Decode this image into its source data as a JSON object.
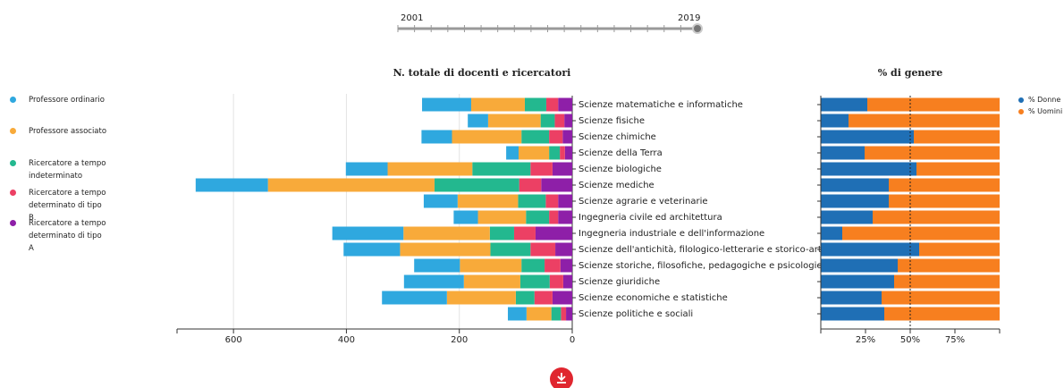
{
  "slider": {
    "start_label": "2001",
    "end_label": "2019",
    "min": 2001,
    "max": 2019,
    "value": 2019
  },
  "chart_data": [
    {
      "type": "stacked-bar-horizontal",
      "title": "N. totale di docenti e ricercatori",
      "categories": [
        "Scienze matematiche e informatiche",
        "Scienze fisiche",
        "Scienze chimiche",
        "Scienze della Terra",
        "Scienze biologiche",
        "Scienze mediche",
        "Scienze agrarie e veterinarie",
        "Ingegneria civile ed architettura",
        "Ingegneria industriale e dell'informazione",
        "Scienze dell'antichità, filologico-letterarie e storico-art...",
        "Scienze storiche, filosofiche, pedagogiche e psicologiche",
        "Scienze giuridiche",
        "Scienze economiche e statistiche",
        "Scienze politiche e sociali"
      ],
      "series": [
        {
          "name": "Professore ordinario",
          "color": "#2fa8df",
          "values": [
            87,
            36,
            54,
            22,
            74,
            128,
            60,
            43,
            126,
            100,
            81,
            106,
            115,
            33
          ]
        },
        {
          "name": "Professore associato",
          "color": "#f8aa3a",
          "values": [
            95,
            93,
            123,
            54,
            150,
            295,
            107,
            85,
            153,
            160,
            109,
            100,
            122,
            44
          ]
        },
        {
          "name": "Ricercatore a tempo indeterminato",
          "color": "#23b88f",
          "values": [
            38,
            25,
            49,
            19,
            103,
            150,
            49,
            41,
            43,
            71,
            41,
            52,
            33,
            17
          ]
        },
        {
          "name": "Ricercatore a tempo determinato di tipo B",
          "color": "#ec4064",
          "values": [
            21,
            17,
            24,
            9,
            39,
            39,
            22,
            16,
            38,
            44,
            28,
            24,
            32,
            9
          ]
        },
        {
          "name": "Ricercatore a tempo determinato di tipo A",
          "color": "#8e1fa8",
          "values": [
            25,
            14,
            17,
            13,
            35,
            55,
            25,
            25,
            65,
            30,
            21,
            16,
            35,
            11
          ]
        }
      ],
      "xlim": [
        0,
        700
      ],
      "xticks": [
        0,
        200,
        400,
        600
      ],
      "grid": true,
      "reversed": true
    },
    {
      "type": "stacked-percent-horizontal",
      "title": "% di genere",
      "series": [
        {
          "name": "% Donne",
          "color": "#1f6fb5",
          "values": [
            26,
            15.5,
            52,
            24.5,
            53.5,
            38,
            38,
            29,
            12,
            55,
            43,
            41,
            34,
            35.5
          ]
        },
        {
          "name": "% Uomini",
          "color": "#f77f1f",
          "values": [
            74,
            84.5,
            48,
            75.5,
            46.5,
            62,
            62,
            71,
            88,
            45,
            57,
            59,
            66,
            64.5
          ]
        }
      ],
      "xlim": [
        0,
        100
      ],
      "xticks": [
        {
          "value": 25,
          "label": "25%"
        },
        {
          "value": 50,
          "label": "50%"
        },
        {
          "value": 75,
          "label": "75%"
        }
      ],
      "reference_line": 50
    }
  ]
}
